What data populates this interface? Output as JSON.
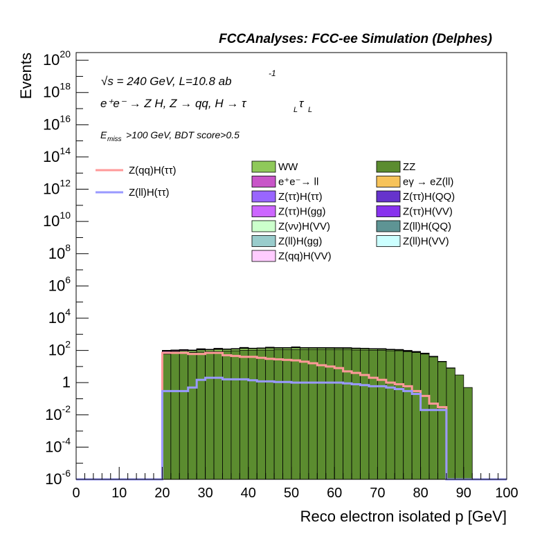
{
  "header": {
    "title": "FCCAnalyses: FCC-ee Simulation (Delphes)"
  },
  "annotations": {
    "energy": "√s = 240 GeV, L=10.8 ab",
    "energy_sup": "-1",
    "process": "e⁺e⁻ → Z H, Z → qq, H → τ",
    "process_sub1": "L",
    "process_tau2": "τ",
    "process_sub2": "L",
    "cut_prefix": "E",
    "cut_sub": "miss",
    "cut_rest": ">100 GeV, BDT score>0.5"
  },
  "chart_data": {
    "type": "area",
    "title": "FCCAnalyses: FCC-ee Simulation (Delphes)",
    "xlabel": "Reco electron isolated p [GeV]",
    "ylabel": "Events",
    "xlim": [
      0,
      100
    ],
    "ylim": [
      1e-06,
      3e+20
    ],
    "log_y": true,
    "grid": false,
    "x_ticks": [
      "0",
      "10",
      "20",
      "30",
      "40",
      "50",
      "60",
      "70",
      "80",
      "90",
      "100"
    ],
    "y_ticks": [
      "10^-6",
      "10^-4",
      "10^-2",
      "1",
      "10^2",
      "10^4",
      "10^6",
      "10^8",
      "10^10",
      "10^12",
      "10^14",
      "10^16",
      "10^18",
      "10^20"
    ],
    "bin_width": 2,
    "bin_low_edges": [
      0,
      2,
      4,
      6,
      8,
      10,
      12,
      14,
      16,
      18,
      20,
      22,
      24,
      26,
      28,
      30,
      32,
      34,
      36,
      38,
      40,
      42,
      44,
      46,
      48,
      50,
      52,
      54,
      56,
      58,
      60,
      62,
      64,
      66,
      68,
      70,
      72,
      74,
      76,
      78,
      80,
      82,
      84,
      86,
      88,
      90,
      92,
      94,
      96,
      98
    ],
    "legend_placement": "center (three columns)",
    "stacked_series": [
      {
        "name": "ZZ",
        "color": "#5b8c2f",
        "values": [
          0,
          0,
          0,
          0,
          0,
          0,
          0,
          0,
          0,
          0,
          60,
          65,
          70,
          75,
          80,
          85,
          85,
          90,
          95,
          100,
          100,
          105,
          105,
          110,
          110,
          110,
          110,
          110,
          110,
          110,
          110,
          110,
          105,
          105,
          100,
          100,
          95,
          95,
          85,
          75,
          60,
          40,
          20,
          8,
          3,
          0.5,
          0,
          0,
          0,
          0
        ]
      },
      {
        "name": "WW",
        "color": "#8fc95a",
        "values": [
          0,
          0,
          0,
          0,
          0,
          0,
          0,
          0,
          0,
          0,
          20,
          22,
          24,
          25,
          27,
          28,
          30,
          30,
          32,
          33,
          34,
          34,
          35,
          35,
          36,
          36,
          36,
          35,
          35,
          34,
          33,
          32,
          30,
          28,
          26,
          24,
          20,
          16,
          12,
          9,
          6,
          3,
          1,
          0.3,
          0,
          0,
          0,
          0,
          0,
          0
        ]
      },
      {
        "name": "e⁺e⁻→ ll",
        "color": "#c855c8",
        "values": [
          0,
          0,
          0,
          0,
          0,
          0,
          0,
          0,
          0,
          0,
          15,
          15,
          15,
          0,
          15,
          0,
          15,
          0,
          0,
          15,
          0,
          0,
          15,
          0,
          0,
          15,
          0,
          0,
          0,
          0,
          0,
          0,
          0,
          0,
          0,
          0,
          0,
          0,
          0,
          0,
          0,
          0,
          0,
          0,
          0,
          0,
          0,
          0,
          0,
          0
        ]
      },
      {
        "name": "eγ → eZ(ll)",
        "color": "#f7c35a",
        "values": [
          0,
          0,
          0,
          0,
          0,
          0,
          0,
          0,
          0,
          0,
          0.005,
          0,
          0,
          0,
          0,
          0,
          0,
          0,
          0,
          0,
          0,
          0,
          0,
          0,
          0,
          0,
          0,
          0,
          0,
          0,
          0,
          0,
          0,
          0,
          0,
          0,
          0,
          0,
          0.005,
          0,
          0,
          0,
          0,
          0,
          0,
          0,
          0,
          0,
          0,
          0
        ]
      },
      {
        "name": "Z(ττ)H(ττ)",
        "color": "#9966ff",
        "values": [
          0,
          0,
          0,
          0,
          0,
          0,
          0,
          0,
          0,
          0,
          0.4,
          0.3,
          0.3,
          0.3,
          0.3,
          0.3,
          0.3,
          0.3,
          0.3,
          0.3,
          0.3,
          0.3,
          0.3,
          0.3,
          0.3,
          0.3,
          0.3,
          0.3,
          0.3,
          0.3,
          0.3,
          0.3,
          0.3,
          0.3,
          0.3,
          0.3,
          0.3,
          0.3,
          0.2,
          0.1,
          0.05,
          0,
          0,
          0,
          0,
          0,
          0,
          0,
          0,
          0
        ]
      },
      {
        "name": "Z(ττ)H(QQ)",
        "color": "#6633cc",
        "values": [
          0,
          0,
          0,
          0,
          0,
          0,
          0,
          0,
          0,
          0,
          3,
          2.5,
          2.5,
          2.5,
          2.5,
          2.5,
          2.5,
          2.5,
          2.5,
          2.5,
          2.5,
          2.5,
          2.5,
          2.5,
          2.5,
          2.5,
          2.5,
          2.5,
          2.5,
          2.5,
          2.5,
          2.5,
          2.5,
          2.5,
          2.5,
          2.5,
          2,
          1.5,
          1,
          0.5,
          0.2,
          0,
          0,
          0,
          0,
          0,
          0,
          0,
          0,
          0
        ]
      },
      {
        "name": "Z(ττ)H(gg)",
        "color": "#cc66ff",
        "values": [
          0,
          0,
          0,
          0,
          0,
          0,
          0,
          0,
          0,
          0,
          0.6,
          0.5,
          0.5,
          0.5,
          0.5,
          0.5,
          0.5,
          0.5,
          0.5,
          0.5,
          0.5,
          0.5,
          0.5,
          0.5,
          0.5,
          0.5,
          0.5,
          0.5,
          0.5,
          0.5,
          0.5,
          0.5,
          0.5,
          0.5,
          0.5,
          0.5,
          0.4,
          0.3,
          0.2,
          0.1,
          0.05,
          0,
          0,
          0,
          0,
          0,
          0,
          0,
          0,
          0
        ]
      },
      {
        "name": "Z(ττ)H(VV)",
        "color": "#8833ee",
        "values": [
          0,
          0,
          0,
          0,
          0,
          0,
          0,
          0,
          0,
          0,
          0.02,
          0,
          0,
          0,
          0,
          0,
          0,
          0,
          0,
          0,
          0,
          0,
          0,
          0,
          0,
          0,
          0,
          0,
          0,
          0,
          0,
          0,
          0,
          0,
          0,
          0.02,
          0,
          0,
          0,
          0,
          0,
          0,
          0,
          0,
          0,
          0,
          0,
          0,
          0,
          0
        ]
      },
      {
        "name": "Z(νν)H(VV)",
        "color": "#ccffcc",
        "values": [
          0,
          0,
          0,
          0,
          0,
          0,
          0,
          0,
          0,
          0,
          1,
          1,
          1,
          1,
          1,
          1,
          1,
          1,
          1,
          1,
          1,
          1,
          1,
          1,
          1,
          1,
          1,
          1,
          1,
          1,
          1,
          1,
          1,
          1,
          1,
          1,
          1,
          1,
          0.6,
          0.4,
          0.2,
          0.1,
          0,
          0,
          0,
          0,
          0,
          0,
          0,
          0
        ]
      },
      {
        "name": "Z(ll)H(QQ)",
        "color": "#5e9494",
        "values": [
          0,
          0,
          0,
          0,
          0,
          0,
          0,
          0,
          0,
          0,
          0,
          0,
          0,
          0,
          0,
          0,
          0,
          0,
          0,
          0,
          0,
          0,
          0,
          0,
          0,
          0,
          0,
          0,
          0,
          0,
          0,
          0,
          0,
          0,
          0,
          0,
          0,
          0,
          0,
          0,
          0,
          0,
          0,
          0,
          0,
          0,
          0,
          0,
          0,
          0
        ]
      },
      {
        "name": "Z(ll)H(gg)",
        "color": "#99cccc",
        "values": [
          0,
          0,
          0,
          0,
          0,
          0,
          0,
          0,
          0,
          0,
          0,
          0,
          0,
          0.02,
          0,
          0,
          0,
          0,
          0,
          0.02,
          0,
          0,
          0,
          0,
          0.02,
          0,
          0,
          0,
          0,
          0,
          0,
          0.02,
          0,
          0,
          0,
          0,
          0,
          0,
          0,
          0,
          0,
          0,
          0,
          0,
          0,
          0,
          0,
          0,
          0,
          0
        ]
      },
      {
        "name": "Z(ll)H(VV)",
        "color": "#ccffff",
        "values": [
          0,
          0,
          0,
          0,
          0,
          0,
          0,
          0,
          0,
          0,
          0,
          0,
          0,
          0,
          0,
          0,
          0,
          0,
          0,
          0,
          0,
          0,
          0,
          0,
          0,
          0,
          0,
          0,
          0,
          0,
          0,
          0,
          0,
          0,
          0,
          0,
          0,
          0,
          0,
          0,
          0,
          0,
          0,
          0,
          0,
          0,
          0,
          0,
          0,
          0
        ]
      },
      {
        "name": "Z(qq)H(VV)",
        "color": "#ffccff",
        "values": [
          0,
          0,
          0,
          0,
          0,
          0,
          0,
          0,
          0,
          0,
          0,
          0,
          0,
          0,
          0,
          0,
          0,
          0,
          0,
          0,
          0,
          0,
          0,
          0,
          0,
          0,
          0,
          0,
          0,
          0,
          0,
          0,
          0,
          0,
          0,
          0,
          0,
          0,
          0,
          0,
          0,
          0,
          0,
          0,
          0,
          0,
          0,
          0,
          0,
          0
        ]
      }
    ],
    "line_series": [
      {
        "name": "Z(qq)H(ττ)",
        "color": "#ff9999",
        "values": [
          0,
          0,
          0,
          0,
          0,
          0,
          0,
          0,
          0,
          0,
          70,
          70,
          70,
          60,
          60,
          70,
          70,
          50,
          45,
          40,
          40,
          35,
          30,
          28,
          26,
          24,
          20,
          16,
          12,
          10,
          8,
          5,
          4,
          3,
          2,
          1.5,
          1,
          0.8,
          0.6,
          0.3,
          0.15,
          0.05,
          0.03,
          0,
          0,
          0,
          0,
          0,
          0,
          0
        ]
      },
      {
        "name": "Z(ll)H(ττ)",
        "color": "#9999ff",
        "values": [
          0,
          0,
          0,
          0,
          0,
          0,
          0,
          0,
          0,
          0,
          0.3,
          0.3,
          0.3,
          0.5,
          1.5,
          2,
          2,
          1.6,
          1.6,
          1.6,
          1.4,
          1.2,
          1.2,
          1.1,
          1.1,
          1,
          1,
          1,
          1,
          1,
          1,
          0.9,
          0.8,
          0.7,
          0.6,
          0.6,
          0.5,
          0.4,
          0.3,
          0.2,
          0.02,
          0.02,
          0.02,
          0,
          0,
          0,
          0,
          0,
          0,
          0
        ]
      }
    ],
    "legend_columns": {
      "col1": [
        "WW",
        "e⁺e⁻→ ll",
        "Z(ττ)H(ττ)",
        "Z(ττ)H(gg)",
        "Z(νν)H(VV)",
        "Z(ll)H(gg)",
        "Z(qq)H(VV)"
      ],
      "col2": [
        "ZZ",
        "eγ → eZ(ll)",
        "Z(ττ)H(QQ)",
        "Z(ττ)H(VV)",
        "Z(ll)H(QQ)",
        "Z(ll)H(VV)"
      ],
      "lines": [
        "Z(qq)H(ττ)",
        "Z(ll)H(ττ)"
      ]
    }
  }
}
